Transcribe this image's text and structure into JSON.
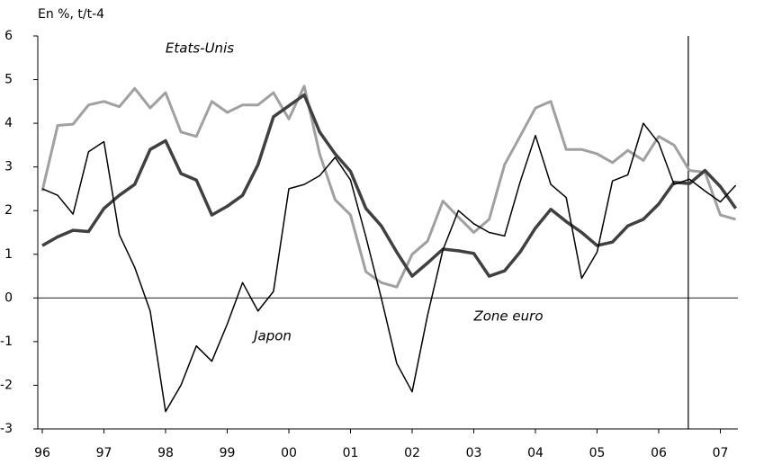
{
  "chart_data": {
    "type": "line",
    "y_axis_label": "En %, t/t-4",
    "x": [
      1996,
      1996.25,
      1996.5,
      1996.75,
      1997,
      1997.25,
      1997.5,
      1997.75,
      1998,
      1998.25,
      1998.5,
      1998.75,
      1999,
      1999.25,
      1999.5,
      1999.75,
      2000,
      2000.25,
      2000.5,
      2000.75,
      2001,
      2001.25,
      2001.5,
      2001.75,
      2002,
      2002.25,
      2002.5,
      2002.75,
      2003,
      2003.25,
      2003.5,
      2003.75,
      2004,
      2004.25,
      2004.5,
      2004.75,
      2005,
      2005.25,
      2005.5,
      2005.75,
      2006,
      2006.25,
      2006.5,
      2006.75,
      2007,
      2007.25
    ],
    "series": [
      {
        "name": "Etats-Unis",
        "color": "#a0a0a0",
        "width": 3,
        "values": [
          2.45,
          3.95,
          3.98,
          4.42,
          4.5,
          4.38,
          4.8,
          4.35,
          4.7,
          3.8,
          3.7,
          4.5,
          4.25,
          4.42,
          4.42,
          4.7,
          4.1,
          4.85,
          3.3,
          2.25,
          1.9,
          0.6,
          0.35,
          0.25,
          1.0,
          1.3,
          2.22,
          1.85,
          1.5,
          1.8,
          3.05,
          3.7,
          4.35,
          4.5,
          3.4,
          3.4,
          3.3,
          3.1,
          3.38,
          3.15,
          3.7,
          3.5,
          2.92,
          2.88,
          1.9,
          1.8
        ]
      },
      {
        "name": "Zone euro",
        "color": "#404040",
        "width": 3.5,
        "values": [
          1.2,
          1.4,
          1.55,
          1.52,
          2.05,
          2.35,
          2.6,
          3.4,
          3.6,
          2.85,
          2.7,
          1.9,
          2.1,
          2.35,
          3.05,
          4.15,
          4.4,
          4.65,
          3.8,
          3.3,
          2.9,
          2.05,
          1.65,
          1.05,
          0.5,
          0.8,
          1.12,
          1.08,
          1.02,
          0.5,
          0.62,
          1.05,
          1.6,
          2.03,
          1.75,
          1.5,
          1.2,
          1.28,
          1.65,
          1.8,
          2.15,
          2.65,
          2.62,
          2.92,
          2.55,
          2.05
        ]
      },
      {
        "name": "Japon",
        "color": "#000000",
        "width": 1.5,
        "values": [
          2.5,
          2.35,
          1.92,
          3.35,
          3.58,
          1.45,
          0.7,
          -0.3,
          -2.6,
          -2.0,
          -1.1,
          -1.45,
          -0.6,
          0.35,
          -0.3,
          0.15,
          2.5,
          2.6,
          2.8,
          3.22,
          2.7,
          1.4,
          0.0,
          -1.5,
          -2.15,
          -0.4,
          1.1,
          2.0,
          1.7,
          1.5,
          1.42,
          2.65,
          3.72,
          2.6,
          2.3,
          0.45,
          1.05,
          2.68,
          2.82,
          4.0,
          3.55,
          2.6,
          2.72,
          2.45,
          2.2,
          2.58
        ]
      }
    ],
    "xlim": [
      1995.927,
      2007.285
    ],
    "xticks": [
      {
        "value": 1996,
        "label": "96"
      },
      {
        "value": 1997,
        "label": "97"
      },
      {
        "value": 1998,
        "label": "98"
      },
      {
        "value": 1999,
        "label": "99"
      },
      {
        "value": 2000,
        "label": "00"
      },
      {
        "value": 2001,
        "label": "01"
      },
      {
        "value": 2002,
        "label": "02"
      },
      {
        "value": 2003,
        "label": "03"
      },
      {
        "value": 2004,
        "label": "04"
      },
      {
        "value": 2005,
        "label": "05"
      },
      {
        "value": 2006,
        "label": "06"
      },
      {
        "value": 2007,
        "label": "07"
      }
    ],
    "ylim": [
      -3,
      6
    ],
    "yticks": [
      -3,
      -2,
      -1,
      0,
      1,
      2,
      3,
      4,
      5,
      6
    ],
    "vline_x": 2006.48
  }
}
